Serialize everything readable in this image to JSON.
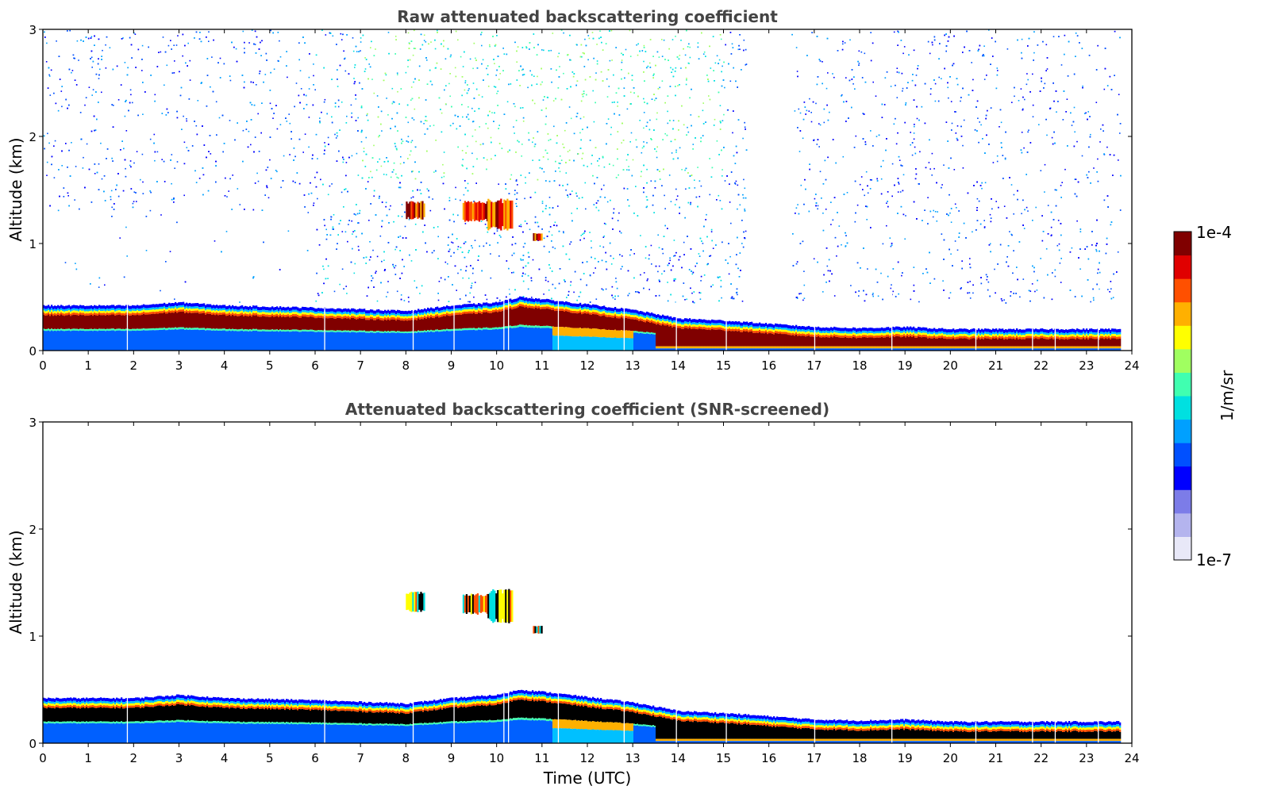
{
  "chart_data": [
    {
      "type": "heatmap",
      "title": "Raw attenuated backscattering coefficient",
      "xlabel": "",
      "ylabel": "Altitude (km)",
      "xlim": [
        0,
        24
      ],
      "ylim": [
        0,
        3
      ],
      "xticks": [
        "0",
        "1",
        "2",
        "3",
        "4",
        "5",
        "6",
        "7",
        "8",
        "9",
        "10",
        "11",
        "12",
        "13",
        "14",
        "15",
        "16",
        "17",
        "18",
        "19",
        "20",
        "21",
        "22",
        "23",
        "24"
      ],
      "yticks": [
        "0",
        "1",
        "2",
        "3"
      ],
      "variable": "raw",
      "aerosol_layer_top_km": [
        [
          0,
          0.42
        ],
        [
          2,
          0.42
        ],
        [
          3,
          0.45
        ],
        [
          4,
          0.42
        ],
        [
          6,
          0.4
        ],
        [
          8,
          0.37
        ],
        [
          9,
          0.42
        ],
        [
          10,
          0.45
        ],
        [
          10.5,
          0.5
        ],
        [
          11,
          0.48
        ],
        [
          12,
          0.43
        ],
        [
          13,
          0.38
        ],
        [
          14,
          0.3
        ],
        [
          15,
          0.28
        ],
        [
          16,
          0.25
        ],
        [
          17,
          0.22
        ],
        [
          18,
          0.21
        ],
        [
          19,
          0.22
        ],
        [
          20,
          0.2
        ],
        [
          21,
          0.2
        ],
        [
          22,
          0.2
        ],
        [
          23,
          0.2
        ],
        [
          23.75,
          0.2
        ]
      ],
      "clouds": [
        {
          "x0": 8.0,
          "x1": 8.4,
          "y0": 1.22,
          "y1": 1.4
        },
        {
          "x0": 9.25,
          "x1": 9.8,
          "y0": 1.2,
          "y1": 1.4
        },
        {
          "x0": 9.8,
          "x1": 10.35,
          "y0": 1.12,
          "y1": 1.42
        },
        {
          "x0": 10.8,
          "x1": 11.0,
          "y0": 1.02,
          "y1": 1.1
        }
      ],
      "data_end_hour": 23.75
    },
    {
      "type": "heatmap",
      "title": "Attenuated backscattering coefficient (SNR-screened)",
      "xlabel": "Time (UTC)",
      "ylabel": "Altitude (km)",
      "xlim": [
        0,
        24
      ],
      "ylim": [
        0,
        3
      ],
      "xticks": [
        "0",
        "1",
        "2",
        "3",
        "4",
        "5",
        "6",
        "7",
        "8",
        "9",
        "10",
        "11",
        "12",
        "13",
        "14",
        "15",
        "16",
        "17",
        "18",
        "19",
        "20",
        "21",
        "22",
        "23",
        "24"
      ],
      "yticks": [
        "0",
        "1",
        "2",
        "3"
      ],
      "variable": "snr_screened",
      "aerosol_layer_top_km": [
        [
          0,
          0.42
        ],
        [
          2,
          0.42
        ],
        [
          3,
          0.45
        ],
        [
          4,
          0.42
        ],
        [
          6,
          0.4
        ],
        [
          8,
          0.37
        ],
        [
          9,
          0.42
        ],
        [
          10,
          0.45
        ],
        [
          10.5,
          0.5
        ],
        [
          11,
          0.48
        ],
        [
          12,
          0.43
        ],
        [
          13,
          0.38
        ],
        [
          14,
          0.3
        ],
        [
          15,
          0.28
        ],
        [
          16,
          0.25
        ],
        [
          17,
          0.22
        ],
        [
          18,
          0.21
        ],
        [
          19,
          0.22
        ],
        [
          20,
          0.2
        ],
        [
          21,
          0.2
        ],
        [
          22,
          0.2
        ],
        [
          23,
          0.2
        ],
        [
          23.75,
          0.2
        ]
      ],
      "clouds": [
        {
          "x0": 8.0,
          "x1": 8.4,
          "y0": 1.22,
          "y1": 1.42
        },
        {
          "x0": 9.25,
          "x1": 9.8,
          "y0": 1.2,
          "y1": 1.4
        },
        {
          "x0": 9.8,
          "x1": 10.35,
          "y0": 1.12,
          "y1": 1.44
        },
        {
          "x0": 10.8,
          "x1": 11.0,
          "y0": 1.02,
          "y1": 1.1
        }
      ],
      "data_end_hour": 23.75
    }
  ],
  "colorbar": {
    "label": "1/m/sr",
    "max_label": "1e-4",
    "min_label": "1e-7",
    "colors": [
      "#e8e8f8",
      "#b4b4ee",
      "#7c7ce8",
      "#0000ff",
      "#0050ff",
      "#00a0ff",
      "#00e0e0",
      "#40ffb0",
      "#a0ff60",
      "#ffff00",
      "#ffb000",
      "#ff5000",
      "#e00000",
      "#800000"
    ]
  }
}
